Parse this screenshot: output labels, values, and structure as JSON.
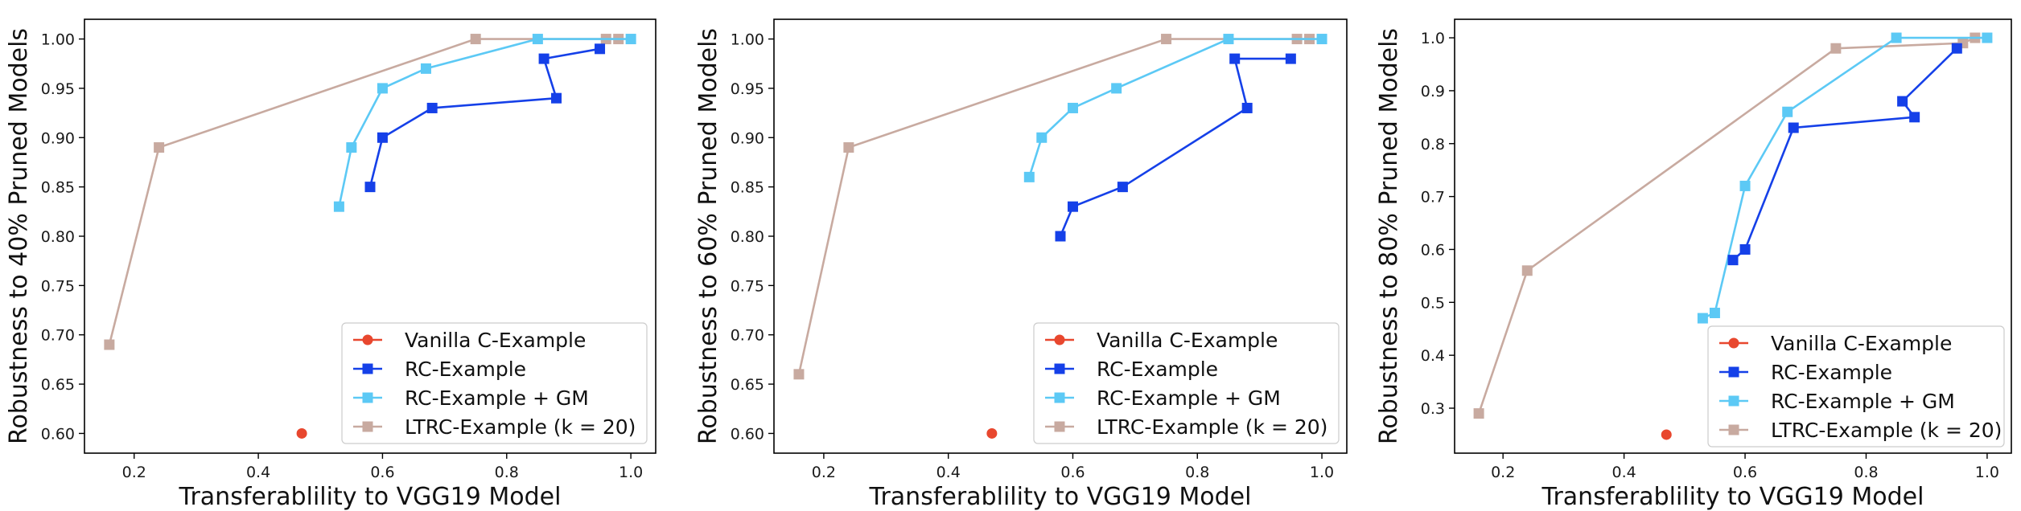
{
  "chart_data": [
    {
      "type": "line",
      "title": "",
      "xlabel": "Transferablility to VGG19 Model",
      "ylabel": "Robustness to 40% Pruned Models",
      "xlim": [
        0.12,
        1.04
      ],
      "ylim": [
        0.58,
        1.02
      ],
      "xticks": [
        0.2,
        0.4,
        0.6,
        0.8,
        1.0
      ],
      "xtick_labels": [
        "0.2",
        "0.4",
        "0.6",
        "0.8",
        "1.0"
      ],
      "yticks": [
        0.6,
        0.65,
        0.7,
        0.75,
        0.8,
        0.85,
        0.9,
        0.95,
        1.0
      ],
      "ytick_labels": [
        "0.60",
        "0.65",
        "0.70",
        "0.75",
        "0.80",
        "0.85",
        "0.90",
        "0.95",
        "1.00"
      ],
      "grid": false,
      "legend_position": "bottom-right",
      "series": [
        {
          "name": "Vanilla C-Example",
          "color": "#e8472e",
          "marker": "circle",
          "x": [
            0.47
          ],
          "y": [
            0.6
          ]
        },
        {
          "name": "RC-Example",
          "color": "#1540e8",
          "marker": "square",
          "x": [
            0.58,
            0.6,
            0.68,
            0.88,
            0.86,
            0.95
          ],
          "y": [
            0.85,
            0.9,
            0.93,
            0.94,
            0.98,
            0.99
          ]
        },
        {
          "name": "RC-Example + GM",
          "color": "#5cc9f5",
          "marker": "square",
          "x": [
            0.53,
            0.55,
            0.6,
            0.67,
            0.85,
            1.0
          ],
          "y": [
            0.83,
            0.89,
            0.95,
            0.97,
            1.0,
            1.0
          ]
        },
        {
          "name": "LTRC-Example (k = 20)",
          "color": "#c8aaa0",
          "marker": "square",
          "x": [
            0.16,
            0.24,
            0.75,
            0.96,
            0.98
          ],
          "y": [
            0.69,
            0.89,
            1.0,
            1.0,
            1.0
          ]
        }
      ]
    },
    {
      "type": "line",
      "title": "",
      "xlabel": "Transferablility to VGG19 Model",
      "ylabel": "Robustness to 60% Pruned Models",
      "xlim": [
        0.12,
        1.04
      ],
      "ylim": [
        0.58,
        1.02
      ],
      "xticks": [
        0.2,
        0.4,
        0.6,
        0.8,
        1.0
      ],
      "xtick_labels": [
        "0.2",
        "0.4",
        "0.6",
        "0.8",
        "1.0"
      ],
      "yticks": [
        0.6,
        0.65,
        0.7,
        0.75,
        0.8,
        0.85,
        0.9,
        0.95,
        1.0
      ],
      "ytick_labels": [
        "0.60",
        "0.65",
        "0.70",
        "0.75",
        "0.80",
        "0.85",
        "0.90",
        "0.95",
        "1.00"
      ],
      "grid": false,
      "legend_position": "bottom-right",
      "series": [
        {
          "name": "Vanilla C-Example",
          "color": "#e8472e",
          "marker": "circle",
          "x": [
            0.47
          ],
          "y": [
            0.6
          ]
        },
        {
          "name": "RC-Example",
          "color": "#1540e8",
          "marker": "square",
          "x": [
            0.58,
            0.6,
            0.68,
            0.88,
            0.86,
            0.95
          ],
          "y": [
            0.8,
            0.83,
            0.85,
            0.93,
            0.98,
            0.98
          ]
        },
        {
          "name": "RC-Example + GM",
          "color": "#5cc9f5",
          "marker": "square",
          "x": [
            0.53,
            0.55,
            0.6,
            0.67,
            0.85,
            1.0
          ],
          "y": [
            0.86,
            0.9,
            0.93,
            0.95,
            1.0,
            1.0
          ]
        },
        {
          "name": "LTRC-Example (k = 20)",
          "color": "#c8aaa0",
          "marker": "square",
          "x": [
            0.16,
            0.24,
            0.75,
            0.96,
            0.98
          ],
          "y": [
            0.66,
            0.89,
            1.0,
            1.0,
            1.0
          ]
        }
      ]
    },
    {
      "type": "line",
      "title": "",
      "xlabel": "Transferablility to VGG19 Model",
      "ylabel": "Robustness to 80% Pruned Models",
      "xlim": [
        0.12,
        1.04
      ],
      "ylim": [
        0.215,
        1.035
      ],
      "xticks": [
        0.2,
        0.4,
        0.6,
        0.8,
        1.0
      ],
      "xtick_labels": [
        "0.2",
        "0.4",
        "0.6",
        "0.8",
        "1.0"
      ],
      "yticks": [
        0.3,
        0.4,
        0.5,
        0.6,
        0.7,
        0.8,
        0.9,
        1.0
      ],
      "ytick_labels": [
        "0.3",
        "0.4",
        "0.5",
        "0.6",
        "0.7",
        "0.8",
        "0.9",
        "1.0"
      ],
      "grid": false,
      "legend_position": "bottom-right",
      "series": [
        {
          "name": "Vanilla C-Example",
          "color": "#e8472e",
          "marker": "circle",
          "x": [
            0.47
          ],
          "y": [
            0.25
          ]
        },
        {
          "name": "RC-Example",
          "color": "#1540e8",
          "marker": "square",
          "x": [
            0.58,
            0.6,
            0.68,
            0.88,
            0.86,
            0.95
          ],
          "y": [
            0.58,
            0.6,
            0.83,
            0.85,
            0.88,
            0.98
          ]
        },
        {
          "name": "RC-Example + GM",
          "color": "#5cc9f5",
          "marker": "square",
          "x": [
            0.53,
            0.55,
            0.6,
            0.67,
            0.85,
            1.0
          ],
          "y": [
            0.47,
            0.48,
            0.72,
            0.86,
            1.0,
            1.0
          ]
        },
        {
          "name": "LTRC-Example (k = 20)",
          "color": "#c8aaa0",
          "marker": "square",
          "x": [
            0.16,
            0.24,
            0.75,
            0.96,
            0.98
          ],
          "y": [
            0.29,
            0.56,
            0.98,
            0.99,
            1.0
          ]
        }
      ]
    }
  ]
}
